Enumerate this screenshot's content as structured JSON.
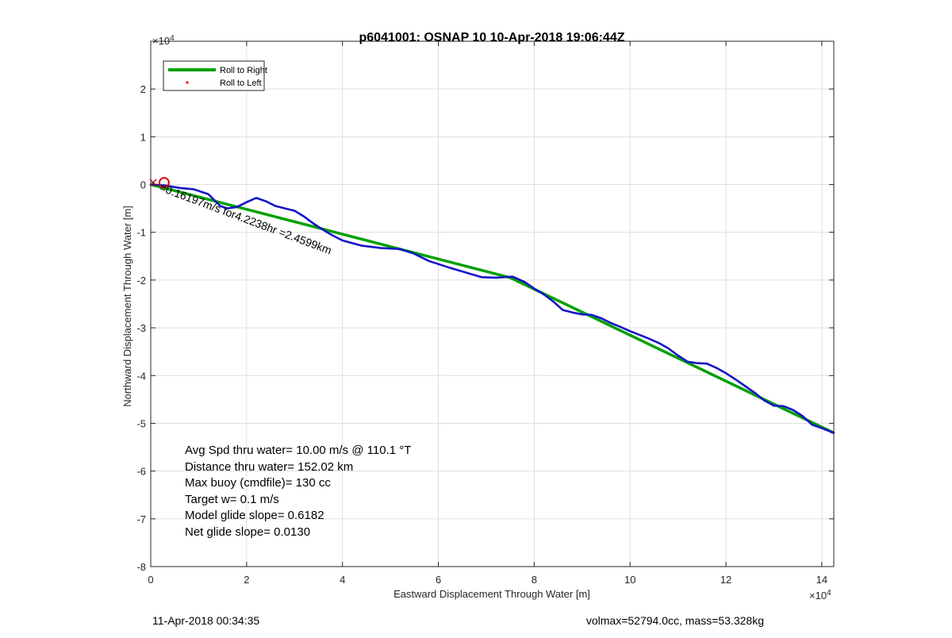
{
  "chart_data": {
    "type": "line",
    "title": "p6041001: OSNAP 10 10-Apr-2018 19:06:44Z",
    "xlabel": "Eastward Displacement Through Water [m]",
    "ylabel": "Northward Displacement Through Water [m]",
    "x_exponent_label": "×10",
    "x_exponent_power": "4",
    "y_exponent_label": "×10",
    "y_exponent_power": "4",
    "xlim": [
      0,
      142500
    ],
    "ylim": [
      -80000,
      30000
    ],
    "xticks": [
      0,
      20000,
      40000,
      60000,
      80000,
      100000,
      120000,
      140000
    ],
    "xtick_labels": [
      "0",
      "2",
      "4",
      "6",
      "8",
      "10",
      "12",
      "14"
    ],
    "yticks": [
      -80000,
      -70000,
      -60000,
      -50000,
      -40000,
      -30000,
      -20000,
      -10000,
      0,
      10000,
      20000
    ],
    "ytick_labels": [
      "-8",
      "-7",
      "-6",
      "-5",
      "-4",
      "-3",
      "-2",
      "-1",
      "0",
      "1",
      "2"
    ],
    "grid": true,
    "legend_position": "top-left",
    "series": [
      {
        "name": "Roll to Right",
        "color": "#00a000",
        "style": "line",
        "x": [
          0,
          75000,
          142500
        ],
        "y": [
          0,
          -19500,
          -52000
        ]
      },
      {
        "name": "Roll to Left",
        "color": "#ff0000",
        "style": "marker"
      },
      {
        "color": "#1515c8",
        "style": "line",
        "x": [
          0,
          3000,
          6000,
          9000,
          12000,
          14500,
          16000,
          18000,
          20000,
          22000,
          24000,
          26000,
          28000,
          30000,
          32000,
          34000,
          36000,
          38000,
          40000,
          44000,
          48000,
          52000,
          55000,
          58000,
          62000,
          66000,
          69000,
          72000,
          75500,
          78000,
          80000,
          82000,
          84000,
          86000,
          88000,
          90000,
          92000,
          94000,
          96000,
          98000,
          100000,
          102000,
          104000,
          106000,
          108000,
          110000,
          112000,
          114000,
          116000,
          118000,
          120000,
          122000,
          124000,
          126000,
          128000,
          130000,
          132000,
          134000,
          136000,
          138000,
          140000,
          142500
        ],
        "y": [
          0,
          -200,
          -700,
          -1000,
          -2000,
          -4500,
          -5000,
          -4700,
          -3700,
          -2800,
          -3500,
          -4500,
          -5000,
          -5500,
          -6700,
          -8200,
          -9500,
          -10700,
          -11700,
          -12800,
          -13300,
          -13500,
          -14500,
          -16000,
          -17300,
          -18500,
          -19400,
          -19500,
          -19300,
          -20400,
          -21800,
          -23000,
          -24500,
          -26300,
          -26800,
          -27200,
          -27300,
          -28000,
          -29000,
          -29800,
          -30700,
          -31500,
          -32300,
          -33200,
          -34300,
          -35800,
          -37100,
          -37400,
          -37500,
          -38400,
          -39500,
          -40800,
          -42200,
          -43600,
          -45200,
          -46300,
          -46400,
          -47200,
          -48500,
          -50300,
          -51000,
          -52000
        ]
      }
    ],
    "annotations": [
      "Avg Spd thru water= 10.00 m/s @ 110.1 °T",
      "Distance thru water= 152.02 km",
      "Max buoy (cmdfile)= 130 cc",
      "Target w= 0.1 m/s",
      "Model glide slope= 0.6182",
      "Net glide slope= 0.0130"
    ],
    "segment_label": "=0.16197m/s for4.2238hr =2.4599km"
  },
  "footer": {
    "left": "11-Apr-2018 00:34:35",
    "right": "volmax=52794.0cc, mass=53.328kg"
  }
}
